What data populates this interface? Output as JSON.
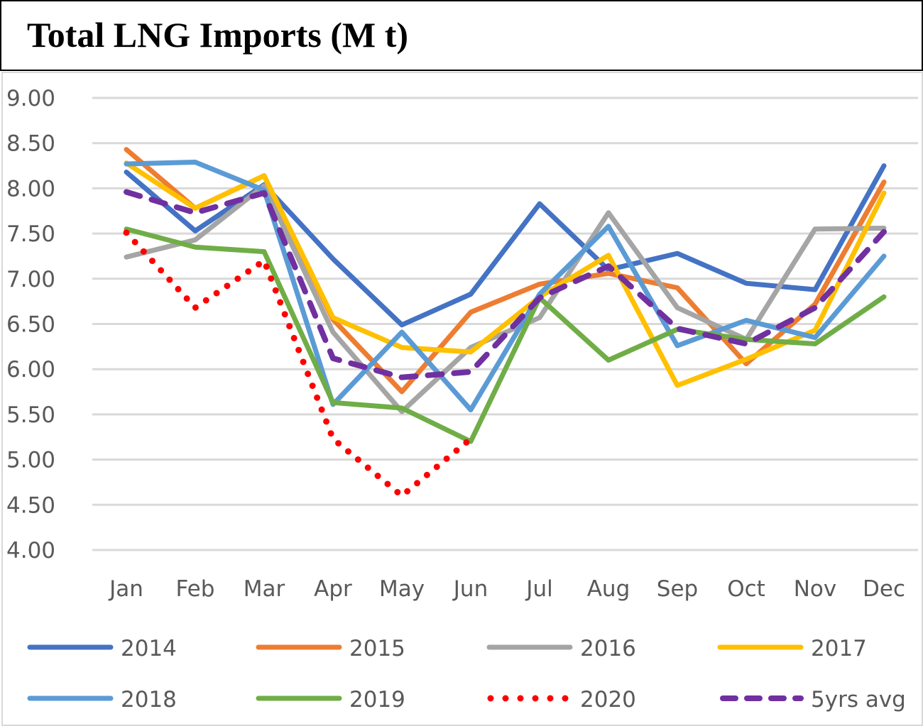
{
  "chart_data": {
    "type": "line",
    "title": "Total LNG Imports (M t)",
    "xlabel": "",
    "ylabel": "",
    "ylim": [
      4.0,
      9.0
    ],
    "yticks": [
      "4.00",
      "4.50",
      "5.00",
      "5.50",
      "6.00",
      "6.50",
      "7.00",
      "7.50",
      "8.00",
      "8.50",
      "9.00"
    ],
    "ytick_values": [
      4.0,
      4.5,
      5.0,
      5.5,
      6.0,
      6.5,
      7.0,
      7.5,
      8.0,
      8.5,
      9.0
    ],
    "grid": true,
    "legend_position": "bottom",
    "categories": [
      "Jan",
      "Feb",
      "Mar",
      "Apr",
      "May",
      "Jun",
      "Jul",
      "Aug",
      "Sep",
      "Oct",
      "Nov",
      "Dec"
    ],
    "series": [
      {
        "name": "2014",
        "color": "#4472C4",
        "style": "solid",
        "values": [
          8.18,
          7.53,
          8.04,
          7.22,
          6.49,
          6.83,
          7.83,
          7.1,
          7.28,
          6.95,
          6.88,
          8.25
        ]
      },
      {
        "name": "2015",
        "color": "#ED7D31",
        "style": "solid",
        "values": [
          8.43,
          7.78,
          8.14,
          6.55,
          5.75,
          6.63,
          6.94,
          7.06,
          6.9,
          6.06,
          6.72,
          8.07
        ]
      },
      {
        "name": "2016",
        "color": "#A5A5A5",
        "style": "solid",
        "values": [
          7.24,
          7.43,
          8.03,
          6.41,
          5.53,
          6.24,
          6.57,
          7.73,
          6.68,
          6.33,
          7.55,
          7.56
        ]
      },
      {
        "name": "2017",
        "color": "#FFC000",
        "style": "solid",
        "values": [
          8.28,
          7.78,
          8.14,
          6.57,
          6.24,
          6.19,
          6.8,
          7.26,
          5.82,
          6.11,
          6.43,
          7.95
        ]
      },
      {
        "name": "2018",
        "color": "#5B9BD5",
        "style": "solid",
        "values": [
          8.27,
          8.29,
          7.98,
          5.61,
          6.41,
          5.55,
          6.83,
          7.58,
          6.26,
          6.54,
          6.35,
          7.25
        ]
      },
      {
        "name": "2019",
        "color": "#70AD47",
        "style": "solid",
        "values": [
          7.55,
          7.35,
          7.3,
          5.63,
          5.57,
          5.2,
          6.79,
          6.1,
          6.44,
          6.33,
          6.28,
          6.8
        ]
      },
      {
        "name": "2020",
        "color": "#FF0000",
        "style": "dotted",
        "values": [
          7.51,
          6.68,
          7.2,
          5.23,
          4.6,
          5.23,
          null,
          null,
          null,
          null,
          null,
          null
        ]
      },
      {
        "name": "5yrs avg",
        "color": "#7030A0",
        "style": "dashed",
        "values": [
          7.96,
          7.73,
          7.95,
          6.12,
          5.91,
          5.97,
          6.79,
          7.14,
          6.45,
          6.28,
          6.68,
          7.52
        ]
      }
    ]
  }
}
